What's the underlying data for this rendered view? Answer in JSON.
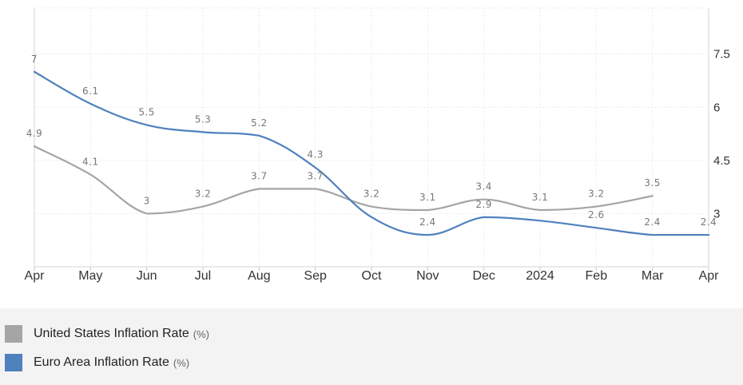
{
  "chart_data": {
    "type": "line",
    "categories": [
      "Apr",
      "May",
      "Jun",
      "Jul",
      "Aug",
      "Sep",
      "Oct",
      "Nov",
      "Dec",
      "2024",
      "Feb",
      "Mar",
      "Apr"
    ],
    "series": [
      {
        "name": "United States Inflation Rate",
        "unit": "(%)",
        "color": "#a5a5a5",
        "values": [
          4.9,
          4.1,
          3,
          3.2,
          3.7,
          3.7,
          3.2,
          3.1,
          3.4,
          3.1,
          3.2,
          3.5,
          null
        ]
      },
      {
        "name": "Euro Area Inflation Rate",
        "unit": "(%)",
        "color": "#4f81bd",
        "values": [
          7,
          6.1,
          5.5,
          5.3,
          5.2,
          4.3,
          2.9,
          2.4,
          2.9,
          2.8,
          2.6,
          2.4,
          2.4
        ],
        "data_labels": [
          "7",
          "6.1",
          "5.5",
          "5.3",
          "5.2",
          "4.3",
          "",
          "2.4",
          "2.9",
          "",
          "2.6",
          "2.4",
          "2.4"
        ]
      }
    ],
    "y_axis": {
      "position": "right",
      "ticks": [
        3,
        4.5,
        6,
        7.5
      ],
      "tick_labels": [
        "3",
        "4.5",
        "6",
        "7.5"
      ]
    },
    "ylim": [
      1.5,
      8.8
    ],
    "grid": true,
    "legend_position": "bottom"
  }
}
